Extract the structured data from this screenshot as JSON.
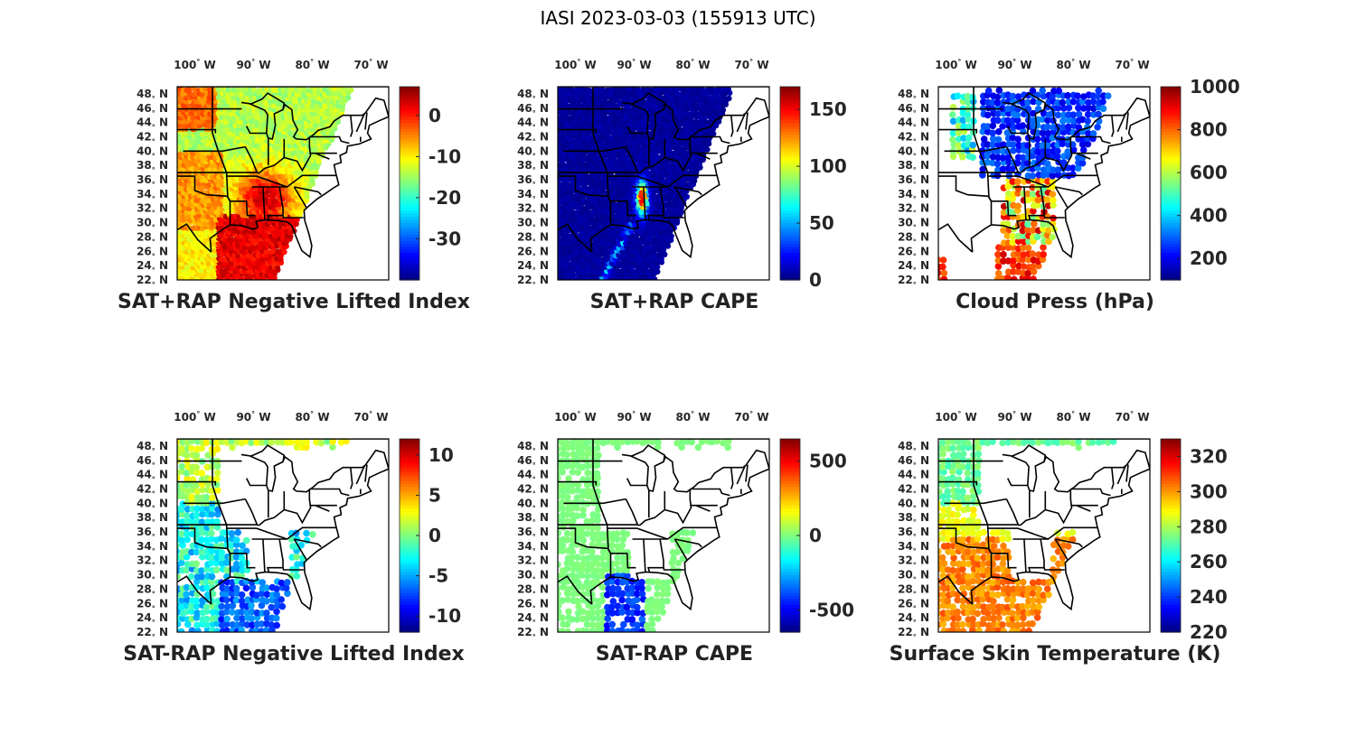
{
  "figure_title": "IASI 2023-03-03 (155913 UTC)",
  "chart_data": [
    {
      "type": "heatmap",
      "title": "SAT+RAP Negative Lifted Index",
      "xticks": [
        "100",
        "90",
        "80",
        "70"
      ],
      "yticks": [
        "48",
        "46",
        "44",
        "42",
        "40",
        "38",
        "36",
        "34",
        "32",
        "30",
        "28",
        "26",
        "24",
        "22"
      ],
      "xlim": [
        -103,
        -67
      ],
      "ylim": [
        22,
        49
      ],
      "colorbar": {
        "min": -40,
        "max": 7,
        "ticks": [
          0,
          -10,
          -20,
          -30
        ]
      },
      "swath": "full",
      "field": "nli",
      "values_desc": [
        {
          "region": "southeast (MS/AL/TN/GA)",
          "value": 3
        },
        {
          "region": "southern plains / Texas",
          "value": -8
        },
        {
          "region": "upper midwest",
          "value": -15
        },
        {
          "region": "northern plains",
          "value": -3
        }
      ]
    },
    {
      "type": "heatmap",
      "title": "SAT+RAP CAPE",
      "xticks": [
        "100",
        "90",
        "80",
        "70"
      ],
      "yticks": [
        "48",
        "46",
        "44",
        "42",
        "40",
        "38",
        "36",
        "34",
        "32",
        "30",
        "28",
        "26",
        "24",
        "22"
      ],
      "xlim": [
        -103,
        -67
      ],
      "ylim": [
        22,
        49
      ],
      "colorbar": {
        "min": 0,
        "max": 170,
        "ticks": [
          150,
          100,
          50,
          0
        ]
      },
      "swath": "full",
      "field": "cape",
      "values_desc": [
        {
          "region": "background",
          "value": 0
        },
        {
          "region": "MS/AL line",
          "value": 160
        }
      ]
    },
    {
      "type": "heatmap",
      "title": "Cloud Press (hPa)",
      "xticks": [
        "100",
        "90",
        "80",
        "70"
      ],
      "yticks": [
        "48",
        "46",
        "44",
        "42",
        "40",
        "38",
        "36",
        "34",
        "32",
        "30",
        "28",
        "26",
        "24",
        "22"
      ],
      "xlim": [
        -103,
        -67
      ],
      "ylim": [
        22,
        49
      ],
      "colorbar": {
        "min": 100,
        "max": 1000,
        "ticks": [
          1000,
          800,
          600,
          400,
          200
        ]
      },
      "swath": "cloud",
      "field": "cloud",
      "values_desc": [
        {
          "region": "Great Lakes / Ohio valley",
          "value": 250
        },
        {
          "region": "Gulf coast band",
          "value": 850
        },
        {
          "region": "northern plains",
          "value": 500
        }
      ]
    },
    {
      "type": "heatmap",
      "title": "SAT-RAP Negative Lifted Index",
      "xticks": [
        "100",
        "90",
        "80",
        "70"
      ],
      "yticks": [
        "48",
        "46",
        "44",
        "42",
        "40",
        "38",
        "36",
        "34",
        "32",
        "30",
        "28",
        "26",
        "24",
        "22"
      ],
      "xlim": [
        -103,
        -67
      ],
      "ylim": [
        22,
        49
      ],
      "colorbar": {
        "min": -12,
        "max": 12,
        "ticks": [
          10,
          5,
          0,
          -5,
          -10
        ]
      },
      "swath": "clear",
      "field": "dnli",
      "values_desc": [
        {
          "region": "northern plains",
          "value": 3
        },
        {
          "region": "Texas / Gulf",
          "value": -6
        }
      ]
    },
    {
      "type": "heatmap",
      "title": "SAT-RAP CAPE",
      "xticks": [
        "100",
        "90",
        "80",
        "70"
      ],
      "yticks": [
        "48",
        "46",
        "44",
        "42",
        "40",
        "38",
        "36",
        "34",
        "32",
        "30",
        "28",
        "26",
        "24",
        "22"
      ],
      "xlim": [
        -103,
        -67
      ],
      "ylim": [
        22,
        49
      ],
      "colorbar": {
        "min": -650,
        "max": 650,
        "ticks": [
          500,
          0,
          -500
        ]
      },
      "swath": "clear",
      "field": "dcape",
      "values_desc": [
        {
          "region": "background",
          "value": 0
        },
        {
          "region": "Louisiana coast",
          "value": -400
        }
      ]
    },
    {
      "type": "heatmap",
      "title": "Surface Skin Temperature (K)",
      "xticks": [
        "100",
        "90",
        "80",
        "70"
      ],
      "yticks": [
        "48",
        "46",
        "44",
        "42",
        "40",
        "38",
        "36",
        "34",
        "32",
        "30",
        "28",
        "26",
        "24",
        "22"
      ],
      "xlim": [
        -103,
        -67
      ],
      "ylim": [
        22,
        49
      ],
      "colorbar": {
        "min": 220,
        "max": 330,
        "ticks": [
          320,
          300,
          280,
          260,
          240,
          220
        ]
      },
      "swath": "clear",
      "field": "skin",
      "values_desc": [
        {
          "region": "Texas / Gulf",
          "value": 300
        },
        {
          "region": "northern plains",
          "value": 275
        }
      ]
    }
  ],
  "colors": {
    "axes": "#000000",
    "text": "#262626"
  }
}
